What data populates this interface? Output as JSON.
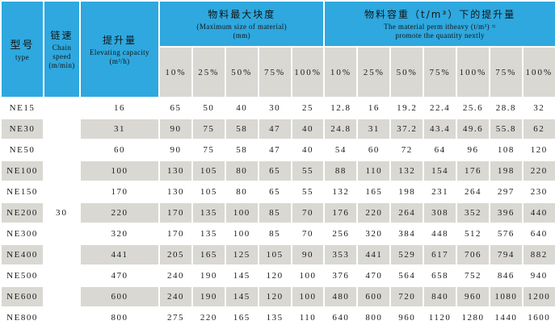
{
  "colors": {
    "header_blue": "#2ea8df",
    "cell_gray": "#d9d8d3",
    "row_white": "#ffffff",
    "text": "#1b1b1b"
  },
  "header": {
    "model": {
      "cn": "型号",
      "en": "type"
    },
    "chain_speed": {
      "cn": "链速",
      "en": "Chain\nspeed\n(m/min)"
    },
    "capacity": {
      "cn": "提升量",
      "en": "Elevating capacity\n(m³/h)"
    },
    "group_max_size": {
      "cn": "物料最大块度",
      "en": "(Maximum size of material)\n(mm)"
    },
    "group_density": {
      "cn": "物料容重（t/m³）下的提升量",
      "en": "The material perm itheavy (t/m³) =\npromote the quantity nextly"
    }
  },
  "table": {
    "percent_headers": [
      "10%",
      "25%",
      "50%",
      "75%",
      "100%",
      "10%",
      "25%",
      "50%",
      "75%",
      "100%",
      "75%",
      "100%"
    ],
    "chain_speed_value": "30",
    "rows": [
      {
        "model": "NE15",
        "capacity": "16",
        "max_size": [
          "65",
          "50",
          "40",
          "30",
          "25"
        ],
        "capacity_by_density": [
          "12.8",
          "16",
          "19.2",
          "22.4",
          "25.6",
          "28.8",
          "32"
        ]
      },
      {
        "model": "NE30",
        "capacity": "31",
        "max_size": [
          "90",
          "75",
          "58",
          "47",
          "40"
        ],
        "capacity_by_density": [
          "24.8",
          "31",
          "37.2",
          "43.4",
          "49.6",
          "55.8",
          "62"
        ]
      },
      {
        "model": "NE50",
        "capacity": "60",
        "max_size": [
          "90",
          "75",
          "58",
          "47",
          "40"
        ],
        "capacity_by_density": [
          "54",
          "60",
          "72",
          "64",
          "96",
          "108",
          "120"
        ]
      },
      {
        "model": "NE100",
        "capacity": "100",
        "max_size": [
          "130",
          "105",
          "80",
          "65",
          "55"
        ],
        "capacity_by_density": [
          "88",
          "110",
          "132",
          "154",
          "176",
          "198",
          "220"
        ]
      },
      {
        "model": "NE150",
        "capacity": "170",
        "max_size": [
          "130",
          "105",
          "80",
          "65",
          "55"
        ],
        "capacity_by_density": [
          "132",
          "165",
          "198",
          "231",
          "264",
          "297",
          "230"
        ]
      },
      {
        "model": "NE200",
        "capacity": "220",
        "max_size": [
          "170",
          "135",
          "100",
          "85",
          "70"
        ],
        "capacity_by_density": [
          "176",
          "220",
          "264",
          "308",
          "352",
          "396",
          "440"
        ]
      },
      {
        "model": "NE300",
        "capacity": "320",
        "max_size": [
          "170",
          "135",
          "100",
          "85",
          "70"
        ],
        "capacity_by_density": [
          "256",
          "320",
          "384",
          "448",
          "512",
          "576",
          "640"
        ]
      },
      {
        "model": "NE400",
        "capacity": "441",
        "max_size": [
          "205",
          "165",
          "125",
          "105",
          "90"
        ],
        "capacity_by_density": [
          "353",
          "441",
          "529",
          "617",
          "706",
          "794",
          "882"
        ]
      },
      {
        "model": "NE500",
        "capacity": "470",
        "max_size": [
          "240",
          "190",
          "145",
          "120",
          "100"
        ],
        "capacity_by_density": [
          "376",
          "470",
          "564",
          "658",
          "752",
          "846",
          "940"
        ]
      },
      {
        "model": "NE600",
        "capacity": "600",
        "max_size": [
          "240",
          "190",
          "145",
          "120",
          "100"
        ],
        "capacity_by_density": [
          "480",
          "600",
          "720",
          "840",
          "960",
          "1080",
          "1200"
        ]
      },
      {
        "model": "NE800",
        "capacity": "800",
        "max_size": [
          "275",
          "220",
          "165",
          "135",
          "110"
        ],
        "capacity_by_density": [
          "640",
          "800",
          "960",
          "1120",
          "1280",
          "1440",
          "1600"
        ]
      }
    ]
  }
}
